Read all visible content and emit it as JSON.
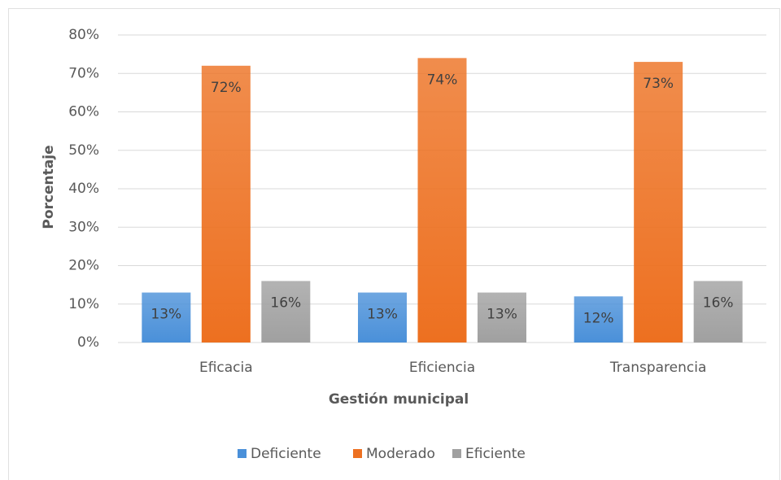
{
  "chart_data": {
    "type": "bar",
    "x_label": "Gestión municipal",
    "y_label": "Porcentaje",
    "categories": [
      "Eficacia",
      "Eficiencia",
      "Transparencia"
    ],
    "series": [
      {
        "name": "Deficiente",
        "color": "#4a90d9",
        "values": [
          13,
          13,
          12
        ],
        "value_labels": [
          "13%",
          "13%",
          "12%"
        ]
      },
      {
        "name": "Moderado",
        "color": "#ed7020",
        "values": [
          72,
          74,
          73
        ],
        "value_labels": [
          "72%",
          "74%",
          "73%"
        ]
      },
      {
        "name": "Eficiente",
        "color": "#a0a0a0",
        "values": [
          16,
          13,
          16
        ],
        "value_labels": [
          "16%",
          "13%",
          "16%"
        ]
      }
    ],
    "ylim": [
      0,
      80
    ],
    "yticks": [
      {
        "value": 0,
        "label": "0%"
      },
      {
        "value": 10,
        "label": "10%"
      },
      {
        "value": 20,
        "label": "20%"
      },
      {
        "value": 30,
        "label": "30%"
      },
      {
        "value": 40,
        "label": "40%"
      },
      {
        "value": 50,
        "label": "50%"
      },
      {
        "value": 60,
        "label": "60%"
      },
      {
        "value": 70,
        "label": "70%"
      },
      {
        "value": 80,
        "label": "80%"
      }
    ],
    "grid": true,
    "legend": "bottom"
  }
}
